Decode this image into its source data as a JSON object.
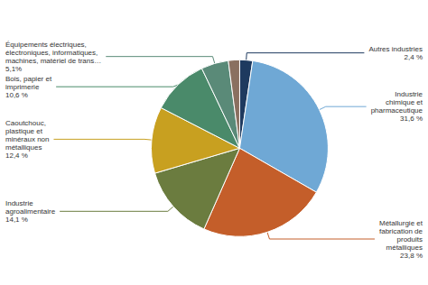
{
  "chart_data": {
    "type": "pie",
    "categories": [
      "Autres industries",
      "Industrie\nchimique et\npharmaceutique",
      "Métallurgie et\nfabrication de\nproduits\nmétalliques",
      "Industrie\nagroalimentaire",
      "Caoutchouc,\nplastique et\nminéraux non\nmétalliques",
      "Bois, papier et\nimprimerie",
      "Équipements électriques,\nélectroniques, informatiques,\nmachines, matériel de trans…",
      null
    ],
    "values": [
      2.4,
      31.6,
      23.8,
      14.1,
      12.4,
      10.6,
      5.1,
      2.1
    ],
    "value_labels": [
      "2,4 %",
      "31,6 %",
      "23,8 %",
      "14,1 %",
      "12,4 %",
      "10,6 %",
      "5,1%",
      null
    ],
    "colors": [
      "#1e3a5f",
      "#6fa8d5",
      "#c45e2a",
      "#6b7c3f",
      "#c8a020",
      "#4a8a6a",
      "#5a8a78",
      "#8a7060"
    ]
  }
}
